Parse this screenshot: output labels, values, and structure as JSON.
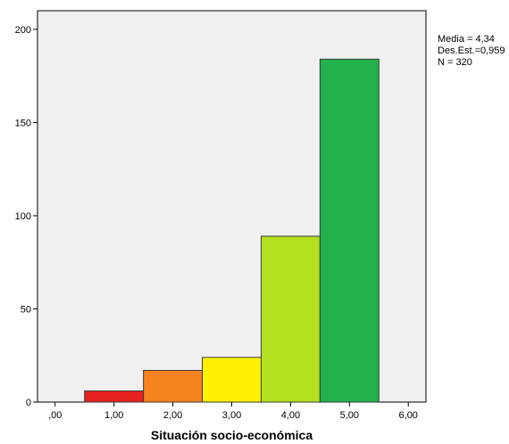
{
  "chart_data": {
    "type": "bar",
    "subtype": "histogram",
    "title": "",
    "xlabel": "Situación socio-económica",
    "ylabel": "",
    "x_ticks": [
      ",00",
      "1,00",
      "2,00",
      "3,00",
      "4,00",
      "5,00",
      "6,00"
    ],
    "y_ticks": [
      "0",
      "50",
      "100",
      "150",
      "200"
    ],
    "xlim": [
      -0.3,
      6.3
    ],
    "ylim": [
      0,
      210
    ],
    "grid": false,
    "bins": [
      {
        "x": 1,
        "value": 6,
        "color": "#e52121"
      },
      {
        "x": 2,
        "value": 17,
        "color": "#f5821f"
      },
      {
        "x": 3,
        "value": 24,
        "color": "#fef200"
      },
      {
        "x": 4,
        "value": 89,
        "color": "#b3e11f"
      },
      {
        "x": 5,
        "value": 184,
        "color": "#22b14c"
      }
    ],
    "stats": {
      "mean_label": "Media = 4,34",
      "sd_label": "Des.Est.=0,959",
      "n_label": "N = 320"
    }
  },
  "colors": {
    "plot_background": "#f0f0f0",
    "bar_border": "#3a3a3a",
    "axis": "#000000"
  }
}
